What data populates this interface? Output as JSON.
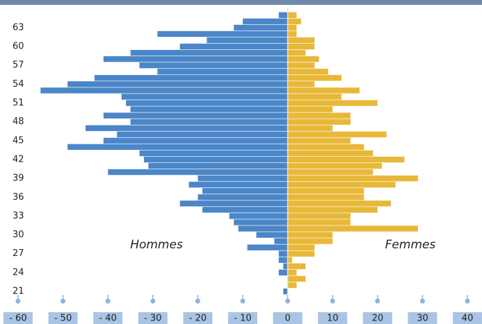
{
  "chart_data": {
    "type": "pyramid",
    "categories": [
      "21",
      null,
      null,
      "24",
      null,
      null,
      "27",
      null,
      null,
      "30",
      null,
      null,
      "33",
      null,
      null,
      "36",
      null,
      null,
      "39",
      null,
      null,
      "42",
      null,
      null,
      "45",
      null,
      null,
      "48",
      null,
      null,
      "51",
      null,
      null,
      "54",
      null,
      null,
      "57",
      null,
      null,
      "60",
      null,
      null,
      "63",
      null,
      null
    ],
    "series": [
      {
        "name": "Hommes",
        "color": "#4a86c8",
        "values": [
          -1,
          0,
          0,
          -2,
          -1,
          -2,
          -2,
          -9,
          -3,
          -7,
          -11,
          -12,
          -13,
          -19,
          -24,
          -20,
          -19,
          -22,
          -20,
          -40,
          -31,
          -32,
          -33,
          -49,
          -41,
          -38,
          -45,
          -35,
          -41,
          -35,
          -36,
          -37,
          -55,
          -49,
          -43,
          -29,
          -33,
          -41,
          -35,
          -24,
          -18,
          -29,
          -12,
          -10,
          -2
        ]
      },
      {
        "name": "Femmes",
        "color": "#e8b838",
        "values": [
          0,
          2,
          4,
          2,
          4,
          1,
          6,
          6,
          10,
          10,
          29,
          14,
          14,
          20,
          23,
          17,
          17,
          24,
          29,
          19,
          21,
          26,
          19,
          17,
          14,
          22,
          10,
          14,
          14,
          10,
          20,
          12,
          16,
          6,
          12,
          9,
          6,
          7,
          4,
          6,
          6,
          2,
          2,
          3,
          2
        ]
      }
    ],
    "xlim": [
      -62,
      42
    ],
    "xticks": [
      {
        "value": -60,
        "label": "- 60"
      },
      {
        "value": -50,
        "label": "- 50"
      },
      {
        "value": -40,
        "label": "- 40"
      },
      {
        "value": -30,
        "label": "- 30"
      },
      {
        "value": -20,
        "label": "- 20"
      },
      {
        "value": -10,
        "label": "- 10"
      },
      0,
      10,
      20,
      30,
      40
    ]
  }
}
